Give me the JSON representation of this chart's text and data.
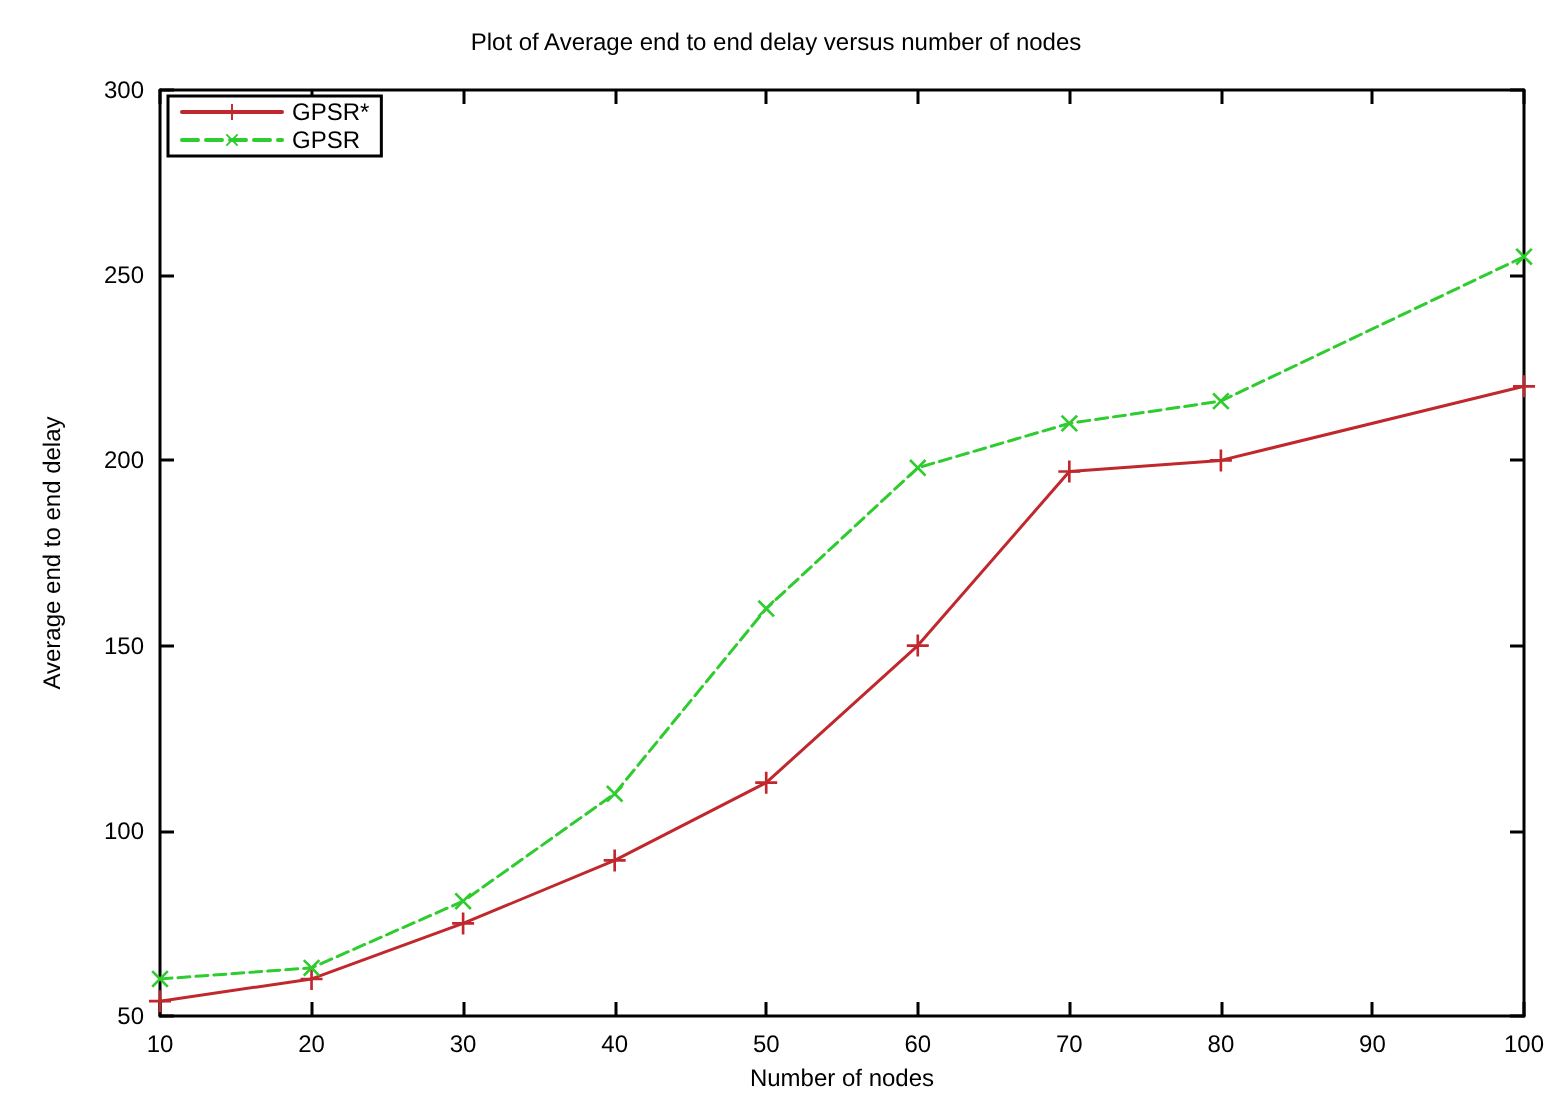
{
  "chart_data": {
    "type": "line",
    "title": "Plot of Average end to end delay versus number of nodes",
    "xlabel": "Number of nodes",
    "ylabel": "Average end to end delay",
    "series": [
      {
        "name": "GPSR*",
        "color": "#c0282d",
        "line_style": "solid",
        "x": [
          10,
          20,
          30,
          40,
          50,
          60,
          70,
          80,
          100
        ],
        "values": [
          54,
          60,
          75,
          92,
          113,
          150,
          197,
          200,
          220
        ]
      },
      {
        "name": "GPSR",
        "color": "#2ecc2e",
        "line_style": "dashed",
        "x": [
          10,
          20,
          30,
          40,
          50,
          60,
          70,
          80,
          100
        ],
        "values": [
          60,
          63,
          81,
          110,
          160,
          198,
          210,
          216,
          255
        ]
      }
    ],
    "xlim": [
      10,
      100
    ],
    "xticks": [
      10,
      20,
      30,
      40,
      50,
      60,
      70,
      80,
      90,
      100
    ],
    "ylim": [
      50,
      300
    ],
    "yticks": [
      50,
      100,
      150,
      200,
      250,
      300
    ],
    "grid": false,
    "legend": "top left",
    "marker": "cross"
  }
}
